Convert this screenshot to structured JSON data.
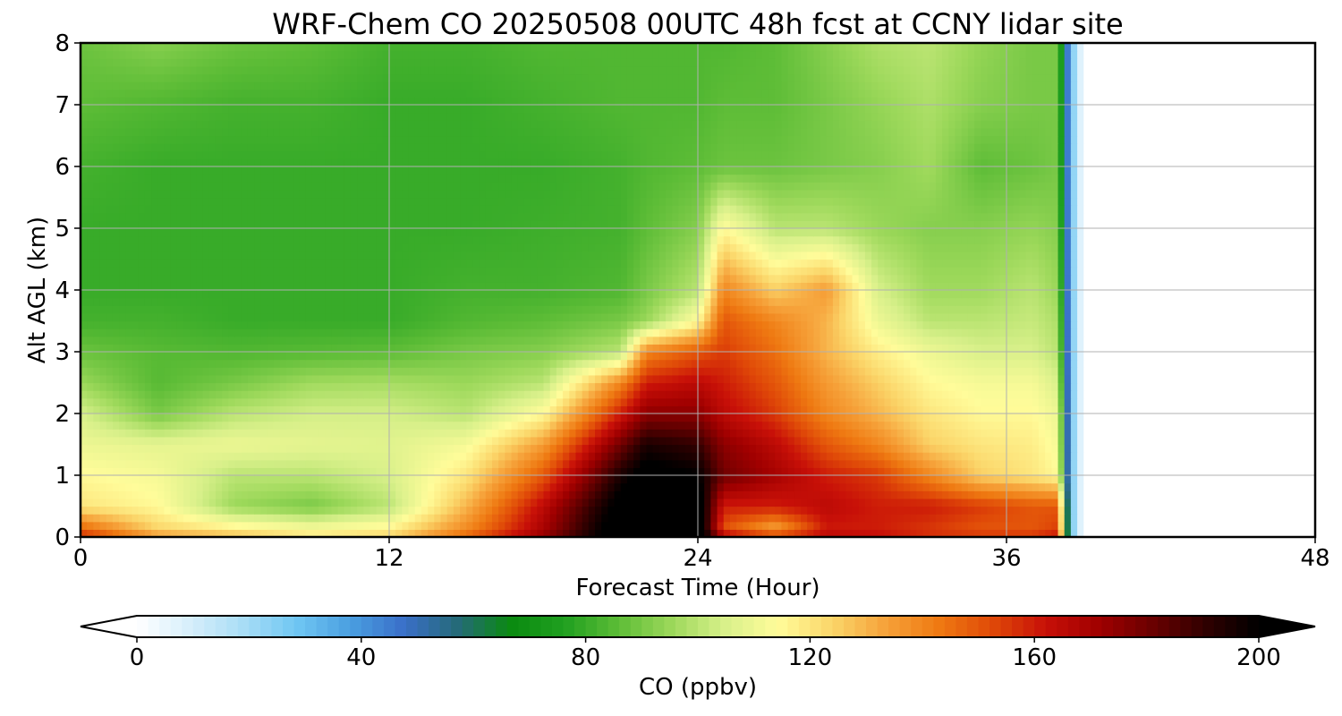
{
  "chart_data": {
    "type": "heatmap",
    "title": "WRF-Chem CO  20250508 00UTC 48h fcst at CCNY lidar site",
    "xlabel": "Forecast Time (Hour)",
    "ylabel": "Alt AGL (km)",
    "xlim": [
      0,
      48
    ],
    "ylim": [
      0,
      8
    ],
    "xticks": [
      "0",
      "12",
      "24",
      "36",
      "48"
    ],
    "yticks": [
      "0",
      "1",
      "2",
      "3",
      "4",
      "5",
      "6",
      "7",
      "8"
    ],
    "grid": true,
    "colorbar": {
      "label": "CO  (ppbv)",
      "range": [
        0,
        200
      ],
      "ticks": [
        "0",
        "40",
        "80",
        "120",
        "160",
        "200"
      ],
      "extend": "both",
      "colors": [
        "#ffffff",
        "#d6eefb",
        "#a8ddf6",
        "#6fc6f3",
        "#4a9ee0",
        "#3a6fc8",
        "#256a78",
        "#0a8a10",
        "#20a020",
        "#5cbc36",
        "#9cd85a",
        "#d8f08a",
        "#fffc9a",
        "#fbd66a",
        "#f6a23a",
        "#ef7a12",
        "#e04a08",
        "#c81008",
        "#a00000",
        "#6a0000",
        "#300000",
        "#000000"
      ]
    },
    "x_hours": [
      0,
      3,
      6,
      9,
      12,
      15,
      18,
      21,
      22,
      24,
      25,
      27,
      29,
      31,
      33,
      35,
      37,
      38,
      38.5,
      39,
      48
    ],
    "alt_km": [
      0,
      0.1,
      0.5,
      1.0,
      1.5,
      2.0,
      2.5,
      3.0,
      3.5,
      4.0,
      5.0,
      6.0,
      7.0,
      8.0
    ],
    "co_ppbv": [
      [
        160,
        140,
        130,
        120,
        125,
        150,
        175,
        210,
        215,
        215,
        180,
        175,
        170,
        165,
        160,
        160,
        160,
        165,
        30,
        0,
        0
      ],
      [
        150,
        125,
        120,
        115,
        118,
        140,
        170,
        210,
        215,
        212,
        150,
        130,
        160,
        160,
        155,
        150,
        150,
        155,
        30,
        0,
        0
      ],
      [
        120,
        115,
        95,
        90,
        100,
        130,
        165,
        205,
        210,
        208,
        160,
        160,
        165,
        160,
        160,
        155,
        150,
        150,
        30,
        0,
        0
      ],
      [
        115,
        112,
        100,
        100,
        105,
        120,
        150,
        195,
        205,
        200,
        180,
        170,
        160,
        155,
        140,
        125,
        120,
        115,
        30,
        0,
        0
      ],
      [
        110,
        108,
        110,
        108,
        107,
        112,
        135,
        180,
        195,
        190,
        175,
        165,
        150,
        140,
        125,
        120,
        118,
        112,
        30,
        0,
        0
      ],
      [
        105,
        90,
        100,
        104,
        104,
        100,
        115,
        160,
        175,
        175,
        165,
        155,
        140,
        130,
        120,
        115,
        115,
        110,
        30,
        0,
        0
      ],
      [
        95,
        85,
        90,
        96,
        97,
        95,
        100,
        140,
        160,
        165,
        160,
        150,
        135,
        125,
        115,
        112,
        112,
        105,
        30,
        0,
        0
      ],
      [
        88,
        85,
        84,
        85,
        86,
        90,
        92,
        100,
        140,
        150,
        155,
        145,
        130,
        118,
        110,
        105,
        105,
        100,
        30,
        0,
        0
      ],
      [
        82,
        82,
        80,
        80,
        80,
        84,
        86,
        90,
        95,
        115,
        150,
        140,
        130,
        110,
        100,
        100,
        102,
        98,
        30,
        0,
        0
      ],
      [
        80,
        80,
        80,
        80,
        80,
        82,
        82,
        84,
        90,
        100,
        140,
        125,
        135,
        105,
        96,
        96,
        100,
        95,
        30,
        0,
        0
      ],
      [
        80,
        80,
        80,
        80,
        80,
        80,
        81,
        82,
        86,
        92,
        115,
        100,
        100,
        95,
        92,
        92,
        94,
        92,
        30,
        0,
        0
      ],
      [
        82,
        80,
        80,
        80,
        80,
        80,
        80,
        82,
        84,
        86,
        88,
        88,
        90,
        92,
        96,
        86,
        88,
        90,
        30,
        0,
        0
      ],
      [
        86,
        84,
        82,
        82,
        80,
        80,
        82,
        84,
        84,
        84,
        86,
        86,
        90,
        94,
        98,
        92,
        90,
        90,
        30,
        0,
        0
      ],
      [
        88,
        92,
        88,
        86,
        82,
        82,
        84,
        84,
        84,
        84,
        84,
        86,
        92,
        98,
        100,
        94,
        90,
        90,
        30,
        0,
        0
      ]
    ]
  }
}
